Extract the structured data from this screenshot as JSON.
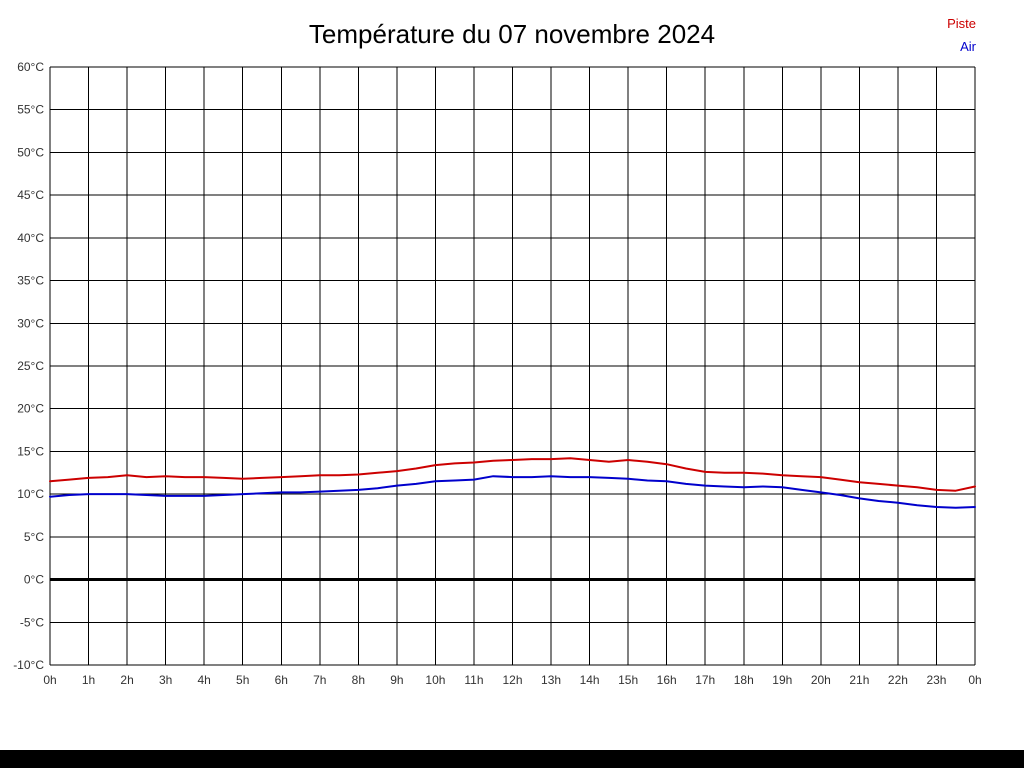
{
  "page": {
    "background": "#ffffff",
    "bottom_bar_color": "#000000"
  },
  "chart_data": {
    "type": "line",
    "title": "Température du 07 novembre 2024",
    "xlabel": "",
    "ylabel": "",
    "xlim": [
      0,
      24
    ],
    "ylim": [
      -10,
      60
    ],
    "grid": true,
    "grid_color": "#000000",
    "zero_line_y": 0,
    "axis_label_color": "#333333",
    "legend_position": "top-right",
    "x_tick_values": [
      0,
      1,
      2,
      3,
      4,
      5,
      6,
      7,
      8,
      9,
      10,
      11,
      12,
      13,
      14,
      15,
      16,
      17,
      18,
      19,
      20,
      21,
      22,
      23,
      24
    ],
    "x_tick_labels": [
      "0h",
      "1h",
      "2h",
      "3h",
      "4h",
      "5h",
      "6h",
      "7h",
      "8h",
      "9h",
      "10h",
      "11h",
      "12h",
      "13h",
      "14h",
      "15h",
      "16h",
      "17h",
      "18h",
      "19h",
      "20h",
      "21h",
      "22h",
      "23h",
      "0h"
    ],
    "y_tick_values": [
      60,
      55,
      50,
      45,
      40,
      35,
      30,
      25,
      20,
      15,
      10,
      5,
      0,
      -5,
      -10
    ],
    "y_tick_labels": [
      "60°C",
      "55°C",
      "50°C",
      "45°C",
      "40°C",
      "35°C",
      "30°C",
      "25°C",
      "20°C",
      "15°C",
      "10°C",
      "5°C",
      "0°C",
      "-5°C",
      "-10°C"
    ],
    "x": [
      0,
      0.5,
      1,
      1.5,
      2,
      2.5,
      3,
      3.5,
      4,
      4.5,
      5,
      5.5,
      6,
      6.5,
      7,
      7.5,
      8,
      8.5,
      9,
      9.5,
      10,
      10.5,
      11,
      11.5,
      12,
      12.5,
      13,
      13.5,
      14,
      14.5,
      15,
      15.5,
      16,
      16.5,
      17,
      17.5,
      18,
      18.5,
      19,
      19.5,
      20,
      20.5,
      21,
      21.5,
      22,
      22.5,
      23,
      23.5,
      24
    ],
    "series": [
      {
        "name": "Piste",
        "color": "#cc0000",
        "values": [
          11.5,
          11.7,
          11.9,
          12.0,
          12.2,
          12.0,
          12.1,
          12.0,
          12.0,
          11.9,
          11.8,
          11.9,
          12.0,
          12.1,
          12.2,
          12.2,
          12.3,
          12.5,
          12.7,
          13.0,
          13.4,
          13.6,
          13.7,
          13.9,
          14.0,
          14.1,
          14.1,
          14.2,
          14.0,
          13.8,
          14.0,
          13.8,
          13.5,
          13.0,
          12.6,
          12.5,
          12.5,
          12.4,
          12.2,
          12.1,
          12.0,
          11.7,
          11.4,
          11.2,
          11.0,
          10.8,
          10.5,
          10.4,
          10.9
        ]
      },
      {
        "name": "Air",
        "color": "#0000cc",
        "values": [
          9.7,
          9.9,
          10.0,
          10.0,
          10.0,
          9.9,
          9.8,
          9.8,
          9.8,
          9.9,
          10.0,
          10.1,
          10.2,
          10.2,
          10.3,
          10.4,
          10.5,
          10.7,
          11.0,
          11.2,
          11.5,
          11.6,
          11.7,
          12.1,
          12.0,
          12.0,
          12.1,
          12.0,
          12.0,
          11.9,
          11.8,
          11.6,
          11.5,
          11.2,
          11.0,
          10.9,
          10.8,
          10.9,
          10.8,
          10.5,
          10.2,
          9.9,
          9.5,
          9.2,
          9.0,
          8.7,
          8.5,
          8.4,
          8.5
        ]
      }
    ]
  }
}
